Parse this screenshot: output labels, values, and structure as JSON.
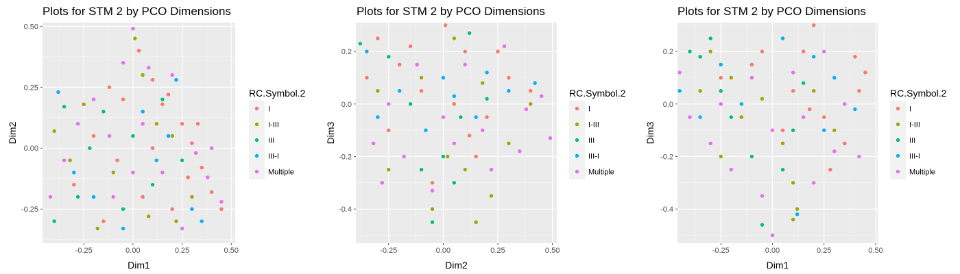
{
  "series_colors": {
    "I": "#F8766D",
    "I-III": "#A3A500",
    "III": "#00BF7D",
    "III-I": "#00B0F6",
    "Multiple": "#E76BF3"
  },
  "chart_data": [
    {
      "type": "scatter",
      "title": "Plots for STM 2 by PCO Dimensions",
      "xlabel": "Dim1",
      "ylabel": "Dim2",
      "xlim": [
        -0.46,
        0.52
      ],
      "ylim": [
        -0.39,
        0.515
      ],
      "xticks": [
        -0.25,
        0.0,
        0.25,
        0.5
      ],
      "xtick_labels": [
        "-0.25",
        "0.00",
        "0.25",
        "0.50"
      ],
      "yticks": [
        -0.25,
        0.0,
        0.25,
        0.5
      ],
      "ytick_labels": [
        "-0.25",
        "0.00",
        "0.25",
        "0.50"
      ],
      "grid": true,
      "legend": {
        "title": "RC.Symbol.2",
        "position": "right",
        "entries": [
          "I",
          "I-III",
          "III",
          "III-I",
          "Multiple"
        ]
      },
      "series": [
        {
          "name": "I",
          "points": [
            [
              0.03,
              0.4
            ],
            [
              0.1,
              0.28
            ],
            [
              -0.05,
              0.2
            ],
            [
              0.15,
              0.18
            ],
            [
              0.25,
              0.1
            ],
            [
              0.3,
              0.02
            ],
            [
              0.35,
              -0.08
            ],
            [
              0.4,
              -0.18
            ],
            [
              0.45,
              -0.25
            ],
            [
              -0.2,
              0.05
            ],
            [
              -0.3,
              -0.15
            ],
            [
              -0.15,
              -0.3
            ],
            [
              0.05,
              -0.2
            ],
            [
              0.2,
              -0.25
            ],
            [
              0.1,
              0.0
            ],
            [
              -0.08,
              -0.05
            ],
            [
              0.28,
              -0.12
            ],
            [
              0.18,
              0.22
            ],
            [
              -0.12,
              0.25
            ],
            [
              0.33,
              0.1
            ]
          ]
        },
        {
          "name": "I-III",
          "points": [
            [
              0.01,
              0.45
            ],
            [
              -0.4,
              0.07
            ],
            [
              -0.25,
              0.18
            ],
            [
              0.05,
              0.3
            ],
            [
              0.12,
              0.1
            ],
            [
              -0.1,
              -0.1
            ],
            [
              0.22,
              -0.3
            ],
            [
              -0.18,
              -0.33
            ],
            [
              0.3,
              -0.2
            ],
            [
              0.08,
              -0.28
            ],
            [
              -0.32,
              -0.05
            ],
            [
              0.2,
              0.05
            ]
          ]
        },
        {
          "name": "III",
          "points": [
            [
              -0.35,
              0.17
            ],
            [
              -0.4,
              -0.3
            ],
            [
              -0.28,
              -0.2
            ],
            [
              -0.15,
              0.15
            ],
            [
              0.0,
              0.05
            ],
            [
              0.1,
              -0.15
            ],
            [
              -0.05,
              -0.25
            ],
            [
              0.25,
              -0.05
            ],
            [
              -0.22,
              0.0
            ],
            [
              0.15,
              0.2
            ]
          ]
        },
        {
          "name": "III-I",
          "points": [
            [
              -0.38,
              0.23
            ],
            [
              -0.3,
              -0.1
            ],
            [
              -0.05,
              -0.33
            ],
            [
              0.18,
              0.05
            ],
            [
              0.3,
              -0.25
            ],
            [
              0.35,
              -0.3
            ],
            [
              0.05,
              0.15
            ],
            [
              -0.2,
              -0.2
            ],
            [
              0.22,
              0.28
            ],
            [
              0.12,
              -0.05
            ]
          ]
        },
        {
          "name": "Multiple",
          "points": [
            [
              0.0,
              0.49
            ],
            [
              -0.42,
              -0.2
            ],
            [
              -0.35,
              -0.05
            ],
            [
              -0.2,
              0.2
            ],
            [
              -0.05,
              0.35
            ],
            [
              0.08,
              0.33
            ],
            [
              0.2,
              0.3
            ],
            [
              0.4,
              0.0
            ],
            [
              0.45,
              -0.22
            ],
            [
              0.25,
              -0.33
            ],
            [
              0.0,
              -0.1
            ],
            [
              -0.12,
              0.05
            ],
            [
              0.15,
              -0.1
            ],
            [
              -0.28,
              0.1
            ],
            [
              0.32,
              -0.02
            ],
            [
              -0.1,
              -0.2
            ],
            [
              0.05,
              0.1
            ],
            [
              0.38,
              -0.12
            ]
          ]
        }
      ]
    },
    {
      "type": "scatter",
      "title": "Plots for STM 2 by PCO Dimensions",
      "xlabel": "Dim2",
      "ylabel": "Dim3",
      "xlim": [
        -0.4,
        0.52
      ],
      "ylim": [
        -0.53,
        0.31
      ],
      "xticks": [
        -0.25,
        0.0,
        0.25,
        0.5
      ],
      "xtick_labels": [
        "-0.25",
        "0.00",
        "0.25",
        "0.50"
      ],
      "yticks": [
        -0.4,
        -0.2,
        0.0,
        0.2
      ],
      "ytick_labels": [
        "-0.4",
        "-0.2",
        "0.0",
        "0.2"
      ],
      "grid": true,
      "legend": {
        "title": "RC.Symbol.2",
        "position": "right",
        "entries": [
          "I",
          "I-III",
          "III",
          "III-I",
          "Multiple"
        ]
      },
      "series": [
        {
          "name": "I",
          "points": [
            [
              0.01,
              0.3
            ],
            [
              -0.3,
              0.25
            ],
            [
              -0.2,
              0.15
            ],
            [
              0.1,
              0.2
            ],
            [
              0.3,
              0.1
            ],
            [
              -0.1,
              0.05
            ],
            [
              0.05,
              0.0
            ],
            [
              0.2,
              -0.05
            ],
            [
              -0.25,
              -0.1
            ],
            [
              0.15,
              -0.2
            ],
            [
              -0.05,
              -0.3
            ],
            [
              0.25,
              0.2
            ],
            [
              -0.35,
              0.1
            ],
            [
              0.4,
              0.05
            ],
            [
              0.12,
              -0.12
            ],
            [
              -0.15,
              0.22
            ]
          ]
        },
        {
          "name": "I-III",
          "points": [
            [
              -0.25,
              -0.25
            ],
            [
              0.05,
              0.25
            ],
            [
              0.1,
              -0.25
            ],
            [
              0.22,
              -0.35
            ],
            [
              -0.1,
              0.1
            ],
            [
              0.3,
              -0.15
            ],
            [
              0.02,
              -0.2
            ],
            [
              -0.3,
              0.05
            ],
            [
              0.18,
              0.08
            ],
            [
              -0.05,
              -0.4
            ],
            [
              0.15,
              -0.45
            ],
            [
              0.4,
              0.0
            ]
          ]
        },
        {
          "name": "III",
          "points": [
            [
              -0.38,
              0.23
            ],
            [
              0.12,
              0.27
            ],
            [
              -0.15,
              0.0
            ],
            [
              0.0,
              -0.2
            ],
            [
              -0.05,
              -0.45
            ],
            [
              0.05,
              -0.3
            ],
            [
              0.2,
              0.02
            ],
            [
              -0.25,
              0.18
            ],
            [
              0.08,
              -0.05
            ],
            [
              -0.1,
              -0.25
            ]
          ]
        },
        {
          "name": "III-I",
          "points": [
            [
              -0.35,
              0.2
            ],
            [
              -0.2,
              0.05
            ],
            [
              0.0,
              0.1
            ],
            [
              0.15,
              -0.05
            ],
            [
              0.3,
              0.05
            ],
            [
              0.42,
              0.08
            ],
            [
              -0.08,
              -0.1
            ],
            [
              0.2,
              0.12
            ],
            [
              -0.3,
              -0.05
            ],
            [
              0.05,
              0.03
            ]
          ]
        },
        {
          "name": "Multiple",
          "points": [
            [
              -0.32,
              -0.15
            ],
            [
              -0.18,
              -0.2
            ],
            [
              0.0,
              -0.05
            ],
            [
              0.18,
              -0.1
            ],
            [
              0.35,
              -0.18
            ],
            [
              0.49,
              -0.13
            ],
            [
              -0.25,
              0.0
            ],
            [
              0.1,
              0.15
            ],
            [
              0.28,
              0.22
            ],
            [
              -0.12,
              0.15
            ],
            [
              0.05,
              -0.15
            ],
            [
              0.38,
              -0.02
            ],
            [
              -0.05,
              -0.33
            ],
            [
              -0.28,
              -0.3
            ],
            [
              0.22,
              -0.25
            ],
            [
              0.45,
              0.03
            ]
          ]
        }
      ]
    },
    {
      "type": "scatter",
      "title": "Plots for STM 2 by PCO Dimensions",
      "xlabel": "Dim1",
      "ylabel": "Dim3",
      "xlim": [
        -0.46,
        0.51
      ],
      "ylim": [
        -0.53,
        0.31
      ],
      "xticks": [
        -0.25,
        0.0,
        0.25,
        0.5
      ],
      "xtick_labels": [
        "-0.25",
        "0.00",
        "0.25",
        "0.50"
      ],
      "yticks": [
        -0.4,
        -0.2,
        0.0,
        0.2
      ],
      "ytick_labels": [
        "-0.4",
        "-0.2",
        "0.0",
        "0.2"
      ],
      "grid": true,
      "legend": {
        "title": "RC.Symbol.2",
        "position": "right",
        "entries": [
          "I",
          "I-III",
          "III",
          "III-I",
          "Multiple"
        ]
      },
      "series": [
        {
          "name": "I",
          "points": [
            [
              0.2,
              0.3
            ],
            [
              0.4,
              0.18
            ],
            [
              0.3,
              0.1
            ],
            [
              0.1,
              0.05
            ],
            [
              -0.1,
              0.15
            ],
            [
              0.45,
              0.12
            ],
            [
              0.25,
              -0.05
            ],
            [
              0.05,
              -0.1
            ],
            [
              -0.05,
              0.2
            ],
            [
              0.35,
              -0.15
            ],
            [
              0.15,
              0.2
            ],
            [
              0.28,
              -0.25
            ],
            [
              -0.25,
              0.1
            ],
            [
              0.42,
              0.05
            ],
            [
              0.18,
              -0.02
            ],
            [
              -0.15,
              -0.05
            ]
          ]
        },
        {
          "name": "I-III",
          "points": [
            [
              -0.3,
              0.2
            ],
            [
              -0.2,
              0.1
            ],
            [
              -0.25,
              -0.2
            ],
            [
              0.1,
              -0.3
            ],
            [
              0.12,
              -0.4
            ],
            [
              -0.15,
              -0.05
            ],
            [
              0.2,
              0.05
            ],
            [
              0.05,
              -0.15
            ],
            [
              -0.35,
              0.05
            ],
            [
              0.3,
              -0.1
            ],
            [
              -0.05,
              0.02
            ],
            [
              0.1,
              -0.44
            ]
          ]
        },
        {
          "name": "III",
          "points": [
            [
              -0.4,
              0.2
            ],
            [
              -0.3,
              0.25
            ],
            [
              -0.05,
              -0.46
            ],
            [
              -0.2,
              -0.05
            ],
            [
              0.05,
              -0.25
            ],
            [
              -0.35,
              0.18
            ],
            [
              0.15,
              0.08
            ],
            [
              -0.1,
              -0.2
            ],
            [
              -0.25,
              0.05
            ],
            [
              0.1,
              -0.1
            ]
          ]
        },
        {
          "name": "III-I",
          "points": [
            [
              -0.45,
              0.05
            ],
            [
              -0.25,
              0.15
            ],
            [
              0.05,
              0.25
            ],
            [
              0.3,
              0.1
            ],
            [
              0.25,
              -0.1
            ],
            [
              0.12,
              -0.42
            ],
            [
              -0.15,
              0.0
            ],
            [
              0.2,
              0.18
            ],
            [
              -0.35,
              -0.05
            ],
            [
              0.4,
              -0.02
            ]
          ]
        },
        {
          "name": "Multiple",
          "points": [
            [
              -0.45,
              0.12
            ],
            [
              -0.4,
              -0.05
            ],
            [
              -0.3,
              -0.15
            ],
            [
              -0.1,
              0.1
            ],
            [
              0.0,
              -0.1
            ],
            [
              0.15,
              -0.05
            ],
            [
              0.35,
              0.0
            ],
            [
              0.2,
              -0.3
            ],
            [
              -0.05,
              -0.35
            ],
            [
              -0.2,
              -0.25
            ],
            [
              0.25,
              0.2
            ],
            [
              0.42,
              -0.2
            ],
            [
              0.0,
              -0.5
            ],
            [
              0.1,
              0.12
            ],
            [
              -0.25,
              0.0
            ],
            [
              0.3,
              -0.18
            ]
          ]
        }
      ]
    }
  ]
}
